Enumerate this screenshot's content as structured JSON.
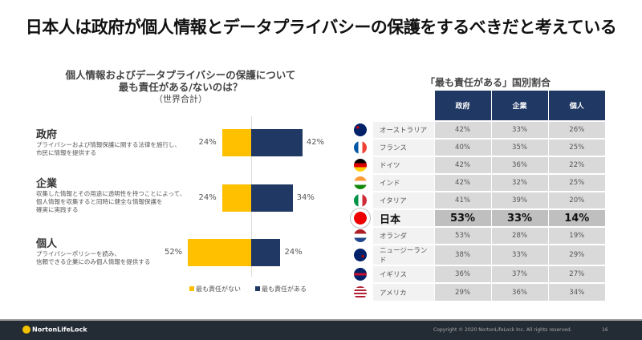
{
  "title": "日本人は政府が個人情報とデータプライバシーの保護をするべきだと考えている",
  "left": {
    "title1": "個人情報およびデータプライバシーの保護について",
    "title2": "最も責任がある/ないのは？",
    "subtitle": "（世界合計）",
    "categories": [
      {
        "name": "政府",
        "desc1": "プライバシーおよび情報保護に関する法律を施行し、",
        "desc2": "市民に情報を提供する",
        "desc3": "",
        "not_responsible": 24,
        "responsible": 42,
        "not_label": "24%",
        "yes_label": "42%"
      },
      {
        "name": "企業",
        "desc1": "収集した情報とその用途に透明性を持つことによって、",
        "desc2": "個人情報を収集すると同時に健全な情報保護を",
        "desc3": "確実に実践する",
        "not_responsible": 24,
        "responsible": 34,
        "not_label": "24%",
        "yes_label": "34%"
      },
      {
        "name": "個人",
        "desc1": "プライバシーポリシーを読み、",
        "desc2": "信頼できる企業にのみ個人情報を提供する",
        "desc3": "",
        "not_responsible": 52,
        "responsible": 24,
        "not_label": "52%",
        "yes_label": "24%"
      }
    ],
    "legend": {
      "not": "最も責任がない",
      "yes": "最も責任がある"
    },
    "colors": {
      "not": "#ffc000",
      "yes": "#203864"
    }
  },
  "right": {
    "title": "「最も責任がある」国別割合",
    "headers": [
      "政府",
      "企業",
      "個人"
    ],
    "rows": [
      {
        "country": "オーストラリア",
        "flag": "australia-flag-icon",
        "v": [
          "42%",
          "33%",
          "26%"
        ]
      },
      {
        "country": "フランス",
        "flag": "france-flag-icon",
        "v": [
          "40%",
          "35%",
          "25%"
        ]
      },
      {
        "country": "ドイツ",
        "flag": "germany-flag-icon",
        "v": [
          "42%",
          "36%",
          "22%"
        ]
      },
      {
        "country": "インド",
        "flag": "india-flag-icon",
        "v": [
          "42%",
          "32%",
          "25%"
        ]
      },
      {
        "country": "イタリア",
        "flag": "italy-flag-icon",
        "v": [
          "41%",
          "39%",
          "20%"
        ]
      },
      {
        "country": "日本",
        "flag": "japan-flag-icon",
        "v": [
          "53%",
          "33%",
          "14%"
        ]
      },
      {
        "country": "オランダ",
        "flag": "netherlands-flag-icon",
        "v": [
          "53%",
          "28%",
          "19%"
        ]
      },
      {
        "country": "ニュージーランド",
        "flag": "new-zealand-flag-icon",
        "v": [
          "38%",
          "33%",
          "29%"
        ]
      },
      {
        "country": "イギリス",
        "flag": "uk-flag-icon",
        "v": [
          "36%",
          "37%",
          "27%"
        ]
      },
      {
        "country": "アメリカ",
        "flag": "usa-flag-icon",
        "v": [
          "29%",
          "36%",
          "34%"
        ]
      }
    ]
  },
  "footer": {
    "logo": "NortonLifeLock",
    "copyright": "Copyright © 2020 NortonLifeLock Inc. All rights reserved.",
    "page": "16"
  }
}
